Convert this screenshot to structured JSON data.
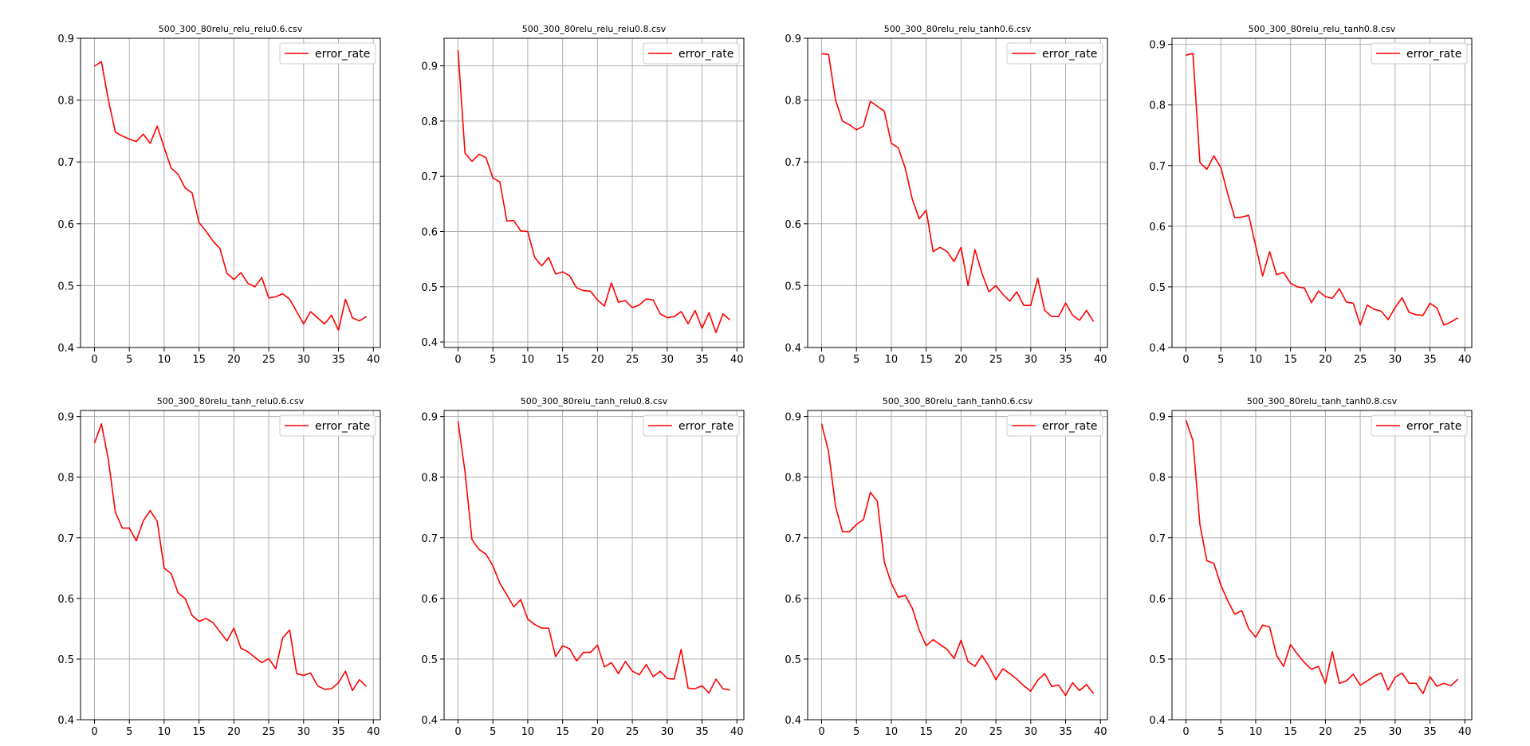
{
  "figure": {
    "background": "#ffffff"
  },
  "line_color": "#ff0000",
  "chart_data": [
    {
      "type": "line",
      "title": "500_300_80relu_relu_relu0.6.csv",
      "legend": "error_rate",
      "legend_position": "top-right",
      "grid": true,
      "xlim": [
        -2,
        41
      ],
      "ylim": [
        0.4,
        0.9
      ],
      "xticks": [
        0,
        5,
        10,
        15,
        20,
        25,
        30,
        35,
        40
      ],
      "yticks": [
        0.4,
        0.5,
        0.6,
        0.7,
        0.8,
        0.9
      ],
      "x": [
        0,
        1,
        2,
        3,
        4,
        5,
        6,
        7,
        8,
        9,
        10,
        11,
        12,
        13,
        14,
        15,
        16,
        17,
        18,
        19,
        20,
        21,
        22,
        23,
        24,
        25,
        26,
        27,
        28,
        29,
        30,
        31,
        32,
        33,
        34,
        35,
        36,
        37,
        38,
        39
      ],
      "series": [
        {
          "name": "error_rate",
          "values": [
            0.855,
            0.862,
            0.8,
            0.748,
            0.742,
            0.737,
            0.733,
            0.745,
            0.73,
            0.758,
            0.723,
            0.69,
            0.68,
            0.658,
            0.65,
            0.602,
            0.588,
            0.572,
            0.56,
            0.52,
            0.51,
            0.521,
            0.504,
            0.498,
            0.513,
            0.48,
            0.482,
            0.487,
            0.478,
            0.458,
            0.438,
            0.458,
            0.448,
            0.438,
            0.452,
            0.428,
            0.478,
            0.448,
            0.443,
            0.45
          ]
        }
      ]
    },
    {
      "type": "line",
      "title": "500_300_80relu_relu_relu0.8.csv",
      "legend": "error_rate",
      "legend_position": "top-right",
      "grid": true,
      "xlim": [
        -2,
        41
      ],
      "ylim": [
        0.39,
        0.95
      ],
      "xticks": [
        0,
        5,
        10,
        15,
        20,
        25,
        30,
        35,
        40
      ],
      "yticks": [
        0.4,
        0.5,
        0.6,
        0.7,
        0.8,
        0.9
      ],
      "x": [
        0,
        1,
        2,
        3,
        4,
        5,
        6,
        7,
        8,
        9,
        10,
        11,
        12,
        13,
        14,
        15,
        16,
        17,
        18,
        19,
        20,
        21,
        22,
        23,
        24,
        25,
        26,
        27,
        28,
        29,
        30,
        31,
        32,
        33,
        34,
        35,
        36,
        37,
        38,
        39
      ],
      "series": [
        {
          "name": "error_rate",
          "values": [
            0.928,
            0.742,
            0.727,
            0.74,
            0.734,
            0.697,
            0.69,
            0.619,
            0.62,
            0.601,
            0.6,
            0.553,
            0.538,
            0.553,
            0.523,
            0.527,
            0.52,
            0.498,
            0.493,
            0.492,
            0.476,
            0.465,
            0.507,
            0.472,
            0.475,
            0.462,
            0.467,
            0.478,
            0.476,
            0.451,
            0.444,
            0.446,
            0.455,
            0.433,
            0.457,
            0.425,
            0.453,
            0.417,
            0.451,
            0.44
          ]
        }
      ]
    },
    {
      "type": "line",
      "title": "500_300_80relu_relu_tanh0.6.csv",
      "legend": "error_rate",
      "legend_position": "top-right",
      "grid": true,
      "xlim": [
        -2,
        41
      ],
      "ylim": [
        0.4,
        0.9
      ],
      "xticks": [
        0,
        5,
        10,
        15,
        20,
        25,
        30,
        35,
        40
      ],
      "yticks": [
        0.4,
        0.5,
        0.6,
        0.7,
        0.8,
        0.9
      ],
      "x": [
        0,
        1,
        2,
        3,
        4,
        5,
        6,
        7,
        8,
        9,
        10,
        11,
        12,
        13,
        14,
        15,
        16,
        17,
        18,
        19,
        20,
        21,
        22,
        23,
        24,
        25,
        26,
        27,
        28,
        29,
        30,
        31,
        32,
        33,
        34,
        35,
        36,
        37,
        38,
        39
      ],
      "series": [
        {
          "name": "error_rate",
          "values": [
            0.875,
            0.874,
            0.8,
            0.766,
            0.76,
            0.752,
            0.758,
            0.798,
            0.79,
            0.782,
            0.73,
            0.723,
            0.69,
            0.64,
            0.608,
            0.622,
            0.555,
            0.562,
            0.555,
            0.539,
            0.562,
            0.5,
            0.558,
            0.52,
            0.49,
            0.5,
            0.486,
            0.475,
            0.49,
            0.468,
            0.468,
            0.512,
            0.46,
            0.45,
            0.45,
            0.472,
            0.452,
            0.444,
            0.46,
            0.442
          ]
        }
      ]
    },
    {
      "type": "line",
      "title": "500_300_80relu_relu_tanh0.8.csv",
      "legend": "error_rate",
      "legend_position": "top-right",
      "grid": true,
      "xlim": [
        -2,
        41
      ],
      "ylim": [
        0.4,
        0.91
      ],
      "xticks": [
        0,
        5,
        10,
        15,
        20,
        25,
        30,
        35,
        40
      ],
      "yticks": [
        0.4,
        0.5,
        0.6,
        0.7,
        0.8,
        0.9
      ],
      "x": [
        0,
        1,
        2,
        3,
        4,
        5,
        6,
        7,
        8,
        9,
        10,
        11,
        12,
        13,
        14,
        15,
        16,
        17,
        18,
        19,
        20,
        21,
        22,
        23,
        24,
        25,
        26,
        27,
        28,
        29,
        30,
        31,
        32,
        33,
        34,
        35,
        36,
        37,
        38,
        39
      ],
      "series": [
        {
          "name": "error_rate",
          "values": [
            0.882,
            0.885,
            0.705,
            0.694,
            0.716,
            0.697,
            0.653,
            0.614,
            0.615,
            0.618,
            0.568,
            0.518,
            0.558,
            0.52,
            0.524,
            0.506,
            0.5,
            0.498,
            0.474,
            0.493,
            0.484,
            0.481,
            0.497,
            0.475,
            0.473,
            0.437,
            0.47,
            0.463,
            0.46,
            0.446,
            0.466,
            0.482,
            0.458,
            0.454,
            0.453,
            0.473,
            0.465,
            0.437,
            0.442,
            0.449
          ]
        }
      ]
    },
    {
      "type": "line",
      "title": "500_300_80relu_tanh_relu0.6.csv",
      "legend": "error_rate",
      "legend_position": "top-right",
      "grid": true,
      "xlim": [
        -2,
        41
      ],
      "ylim": [
        0.4,
        0.91
      ],
      "xticks": [
        0,
        5,
        10,
        15,
        20,
        25,
        30,
        35,
        40
      ],
      "yticks": [
        0.4,
        0.5,
        0.6,
        0.7,
        0.8,
        0.9
      ],
      "x": [
        0,
        1,
        2,
        3,
        4,
        5,
        6,
        7,
        8,
        9,
        10,
        11,
        12,
        13,
        14,
        15,
        16,
        17,
        18,
        19,
        20,
        21,
        22,
        23,
        24,
        25,
        26,
        27,
        28,
        29,
        30,
        31,
        32,
        33,
        34,
        35,
        36,
        37,
        38,
        39
      ],
      "series": [
        {
          "name": "error_rate",
          "values": [
            0.856,
            0.888,
            0.828,
            0.742,
            0.716,
            0.716,
            0.695,
            0.728,
            0.745,
            0.727,
            0.65,
            0.641,
            0.609,
            0.6,
            0.572,
            0.562,
            0.567,
            0.56,
            0.545,
            0.53,
            0.551,
            0.518,
            0.512,
            0.503,
            0.494,
            0.501,
            0.484,
            0.535,
            0.548,
            0.476,
            0.473,
            0.477,
            0.456,
            0.45,
            0.451,
            0.461,
            0.48,
            0.448,
            0.466,
            0.455
          ]
        }
      ]
    },
    {
      "type": "line",
      "title": "500_300_80relu_tanh_relu0.8.csv",
      "legend": "error_rate",
      "legend_position": "top-right",
      "grid": true,
      "xlim": [
        -2,
        41
      ],
      "ylim": [
        0.4,
        0.91
      ],
      "xticks": [
        0,
        5,
        10,
        15,
        20,
        25,
        30,
        35,
        40
      ],
      "yticks": [
        0.4,
        0.5,
        0.6,
        0.7,
        0.8,
        0.9
      ],
      "x": [
        0,
        1,
        2,
        3,
        4,
        5,
        6,
        7,
        8,
        9,
        10,
        11,
        12,
        13,
        14,
        15,
        16,
        17,
        18,
        19,
        20,
        21,
        22,
        23,
        24,
        25,
        26,
        27,
        28,
        29,
        30,
        31,
        32,
        33,
        34,
        35,
        36,
        37,
        38,
        39
      ],
      "series": [
        {
          "name": "error_rate",
          "values": [
            0.892,
            0.809,
            0.697,
            0.681,
            0.673,
            0.654,
            0.625,
            0.606,
            0.586,
            0.598,
            0.566,
            0.557,
            0.551,
            0.551,
            0.504,
            0.522,
            0.517,
            0.497,
            0.511,
            0.511,
            0.523,
            0.487,
            0.494,
            0.476,
            0.496,
            0.48,
            0.474,
            0.491,
            0.471,
            0.48,
            0.468,
            0.467,
            0.516,
            0.452,
            0.451,
            0.456,
            0.444,
            0.467,
            0.451,
            0.449
          ]
        }
      ]
    },
    {
      "type": "line",
      "title": "500_300_80relu_tanh_tanh0.6.csv",
      "legend": "error_rate",
      "legend_position": "top-right",
      "grid": true,
      "xlim": [
        -2,
        41
      ],
      "ylim": [
        0.4,
        0.91
      ],
      "xticks": [
        0,
        5,
        10,
        15,
        20,
        25,
        30,
        35,
        40
      ],
      "yticks": [
        0.4,
        0.5,
        0.6,
        0.7,
        0.8,
        0.9
      ],
      "x": [
        0,
        1,
        2,
        3,
        4,
        5,
        6,
        7,
        8,
        9,
        10,
        11,
        12,
        13,
        14,
        15,
        16,
        17,
        18,
        19,
        20,
        21,
        22,
        23,
        24,
        25,
        26,
        27,
        28,
        29,
        30,
        31,
        32,
        33,
        34,
        35,
        36,
        37,
        38,
        39
      ],
      "series": [
        {
          "name": "error_rate",
          "values": [
            0.888,
            0.842,
            0.752,
            0.71,
            0.71,
            0.722,
            0.73,
            0.775,
            0.76,
            0.66,
            0.625,
            0.602,
            0.605,
            0.584,
            0.548,
            0.522,
            0.532,
            0.524,
            0.516,
            0.501,
            0.531,
            0.496,
            0.488,
            0.506,
            0.488,
            0.466,
            0.484,
            0.476,
            0.467,
            0.456,
            0.447,
            0.465,
            0.476,
            0.455,
            0.457,
            0.44,
            0.461,
            0.448,
            0.458,
            0.443
          ]
        }
      ]
    },
    {
      "type": "line",
      "title": "500_300_80relu_tanh_tanh0.8.csv",
      "legend": "error_rate",
      "legend_position": "top-right",
      "grid": true,
      "xlim": [
        -2,
        41
      ],
      "ylim": [
        0.4,
        0.91
      ],
      "xticks": [
        0,
        5,
        10,
        15,
        20,
        25,
        30,
        35,
        40
      ],
      "yticks": [
        0.4,
        0.5,
        0.6,
        0.7,
        0.8,
        0.9
      ],
      "x": [
        0,
        1,
        2,
        3,
        4,
        5,
        6,
        7,
        8,
        9,
        10,
        11,
        12,
        13,
        14,
        15,
        16,
        17,
        18,
        19,
        20,
        21,
        22,
        23,
        24,
        25,
        26,
        27,
        28,
        29,
        30,
        31,
        32,
        33,
        34,
        35,
        36,
        37,
        38,
        39
      ],
      "series": [
        {
          "name": "error_rate",
          "values": [
            0.894,
            0.86,
            0.722,
            0.662,
            0.658,
            0.622,
            0.596,
            0.574,
            0.58,
            0.55,
            0.536,
            0.556,
            0.553,
            0.506,
            0.488,
            0.524,
            0.508,
            0.494,
            0.483,
            0.488,
            0.46,
            0.512,
            0.46,
            0.464,
            0.475,
            0.457,
            0.464,
            0.472,
            0.477,
            0.449,
            0.47,
            0.477,
            0.46,
            0.46,
            0.443,
            0.471,
            0.455,
            0.46,
            0.456,
            0.467
          ]
        }
      ]
    }
  ]
}
